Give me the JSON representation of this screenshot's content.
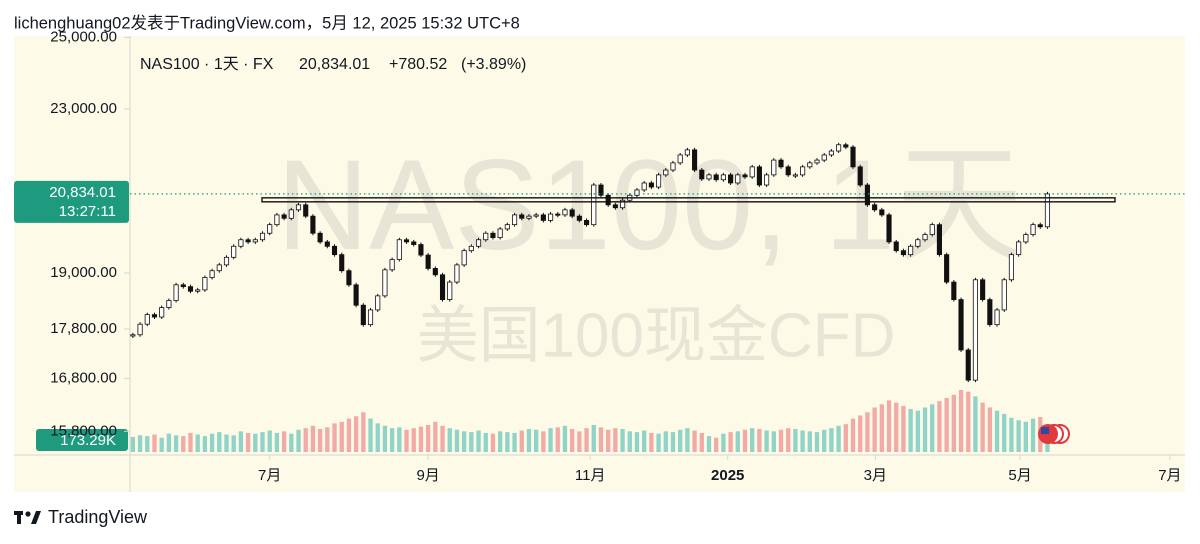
{
  "header": "lichenghuang02发表于TradingView.com，5月 12, 2025 15:32 UTC+8",
  "footer": "TradingView",
  "chart_data": {
    "type": "candlestick",
    "legend_symbol": "NAS100 · 1天 · FX",
    "last_price": {
      "value": 20834.01,
      "label": "20,834.01"
    },
    "change": {
      "value": 780.52,
      "label": "+780.52"
    },
    "change_percent": {
      "value": 3.89,
      "label": "(+3.89%)"
    },
    "countdown": "13:27:11",
    "watermark": "NAS100, 1天",
    "watermark_subtitle": "美国100现金CFD",
    "log_scale": true,
    "ylim": [
      15370,
      25040
    ],
    "yticks": [
      {
        "value": 25000,
        "label": "25,000.00"
      },
      {
        "value": 23000,
        "label": "23,000.00"
      },
      {
        "value": 19000,
        "label": "19,000.00"
      },
      {
        "value": 17800,
        "label": "17,800.00"
      },
      {
        "value": 16800,
        "label": "16,800.00"
      },
      {
        "value": 15800,
        "label": "15,800.00"
      }
    ],
    "xlim": [
      -0.4,
      146.1
    ],
    "xticks": [
      {
        "value": 19,
        "label": "7月"
      },
      {
        "value": 41,
        "label": "9月"
      },
      {
        "value": 63.5,
        "label": "11月"
      },
      {
        "value": 82.6,
        "label": "2025"
      },
      {
        "value": 103.1,
        "label": "3月"
      },
      {
        "value": 123.2,
        "label": "5月"
      },
      {
        "value": 144,
        "label": "7月"
      }
    ],
    "horizontal_line": 20690,
    "up_color": "#ffffff",
    "down_color": "#111111",
    "border_color": "#111111",
    "volume_up_color": "#8fd3c9",
    "volume_down_color": "#f3aaa6",
    "price_label_color": "#1e9a7e",
    "closes": [
      17680,
      17900,
      18100,
      18050,
      18250,
      18400,
      18740,
      18700,
      18600,
      18630,
      18900,
      19050,
      19180,
      19350,
      19600,
      19750,
      19700,
      19750,
      19900,
      20100,
      20330,
      20250,
      20450,
      20570,
      20300,
      19900,
      19700,
      19600,
      19410,
      19050,
      18740,
      18300,
      17890,
      18200,
      18500,
      19070,
      19300,
      19750,
      19700,
      19640,
      19400,
      19100,
      18960,
      18420,
      18800,
      19180,
      19500,
      19600,
      19750,
      19900,
      19800,
      20000,
      20100,
      20330,
      20250,
      20300,
      20330,
      20200,
      20350,
      20330,
      20450,
      20300,
      20200,
      20100,
      21050,
      20800,
      20570,
      20500,
      20680,
      20800,
      20930,
      21100,
      21000,
      21300,
      21420,
      21600,
      21800,
      21930,
      21420,
      21200,
      21300,
      21180,
      21300,
      21100,
      21300,
      21250,
      21500,
      21050,
      21300,
      21670,
      21500,
      21300,
      21300,
      21500,
      21600,
      21670,
      21800,
      21900,
      22060,
      22000,
      21500,
      21050,
      20570,
      20450,
      20330,
      19700,
      19500,
      19410,
      19600,
      19750,
      19870,
      20100,
      19410,
      18800,
      18420,
      17370,
      16770,
      18850,
      18420,
      17890,
      18200,
      18850,
      19410,
      19700,
      19870,
      20100,
      20050,
      20834.01
    ],
    "volumes": [
      190,
      210,
      200,
      220,
      180,
      230,
      210,
      200,
      240,
      220,
      200,
      230,
      250,
      220,
      210,
      260,
      240,
      230,
      250,
      270,
      240,
      260,
      230,
      280,
      300,
      330,
      290,
      310,
      360,
      380,
      420,
      450,
      500,
      420,
      360,
      330,
      300,
      310,
      280,
      300,
      320,
      340,
      380,
      330,
      300,
      280,
      260,
      250,
      270,
      240,
      230,
      260,
      250,
      240,
      270,
      290,
      280,
      260,
      300,
      310,
      330,
      290,
      260,
      300,
      340,
      310,
      280,
      300,
      290,
      260,
      250,
      270,
      240,
      230,
      260,
      250,
      280,
      300,
      270,
      240,
      200,
      180,
      230,
      250,
      260,
      280,
      300,
      290,
      270,
      260,
      280,
      300,
      290,
      270,
      260,
      250,
      280,
      300,
      330,
      350,
      420,
      460,
      500,
      560,
      600,
      650,
      620,
      580,
      540,
      520,
      560,
      600,
      640,
      680,
      720,
      780,
      760,
      700,
      620,
      560,
      520,
      480,
      430,
      400,
      380,
      420,
      440,
      173.29
    ],
    "volume_label": {
      "value": 173.29,
      "label": "173.29K"
    }
  }
}
